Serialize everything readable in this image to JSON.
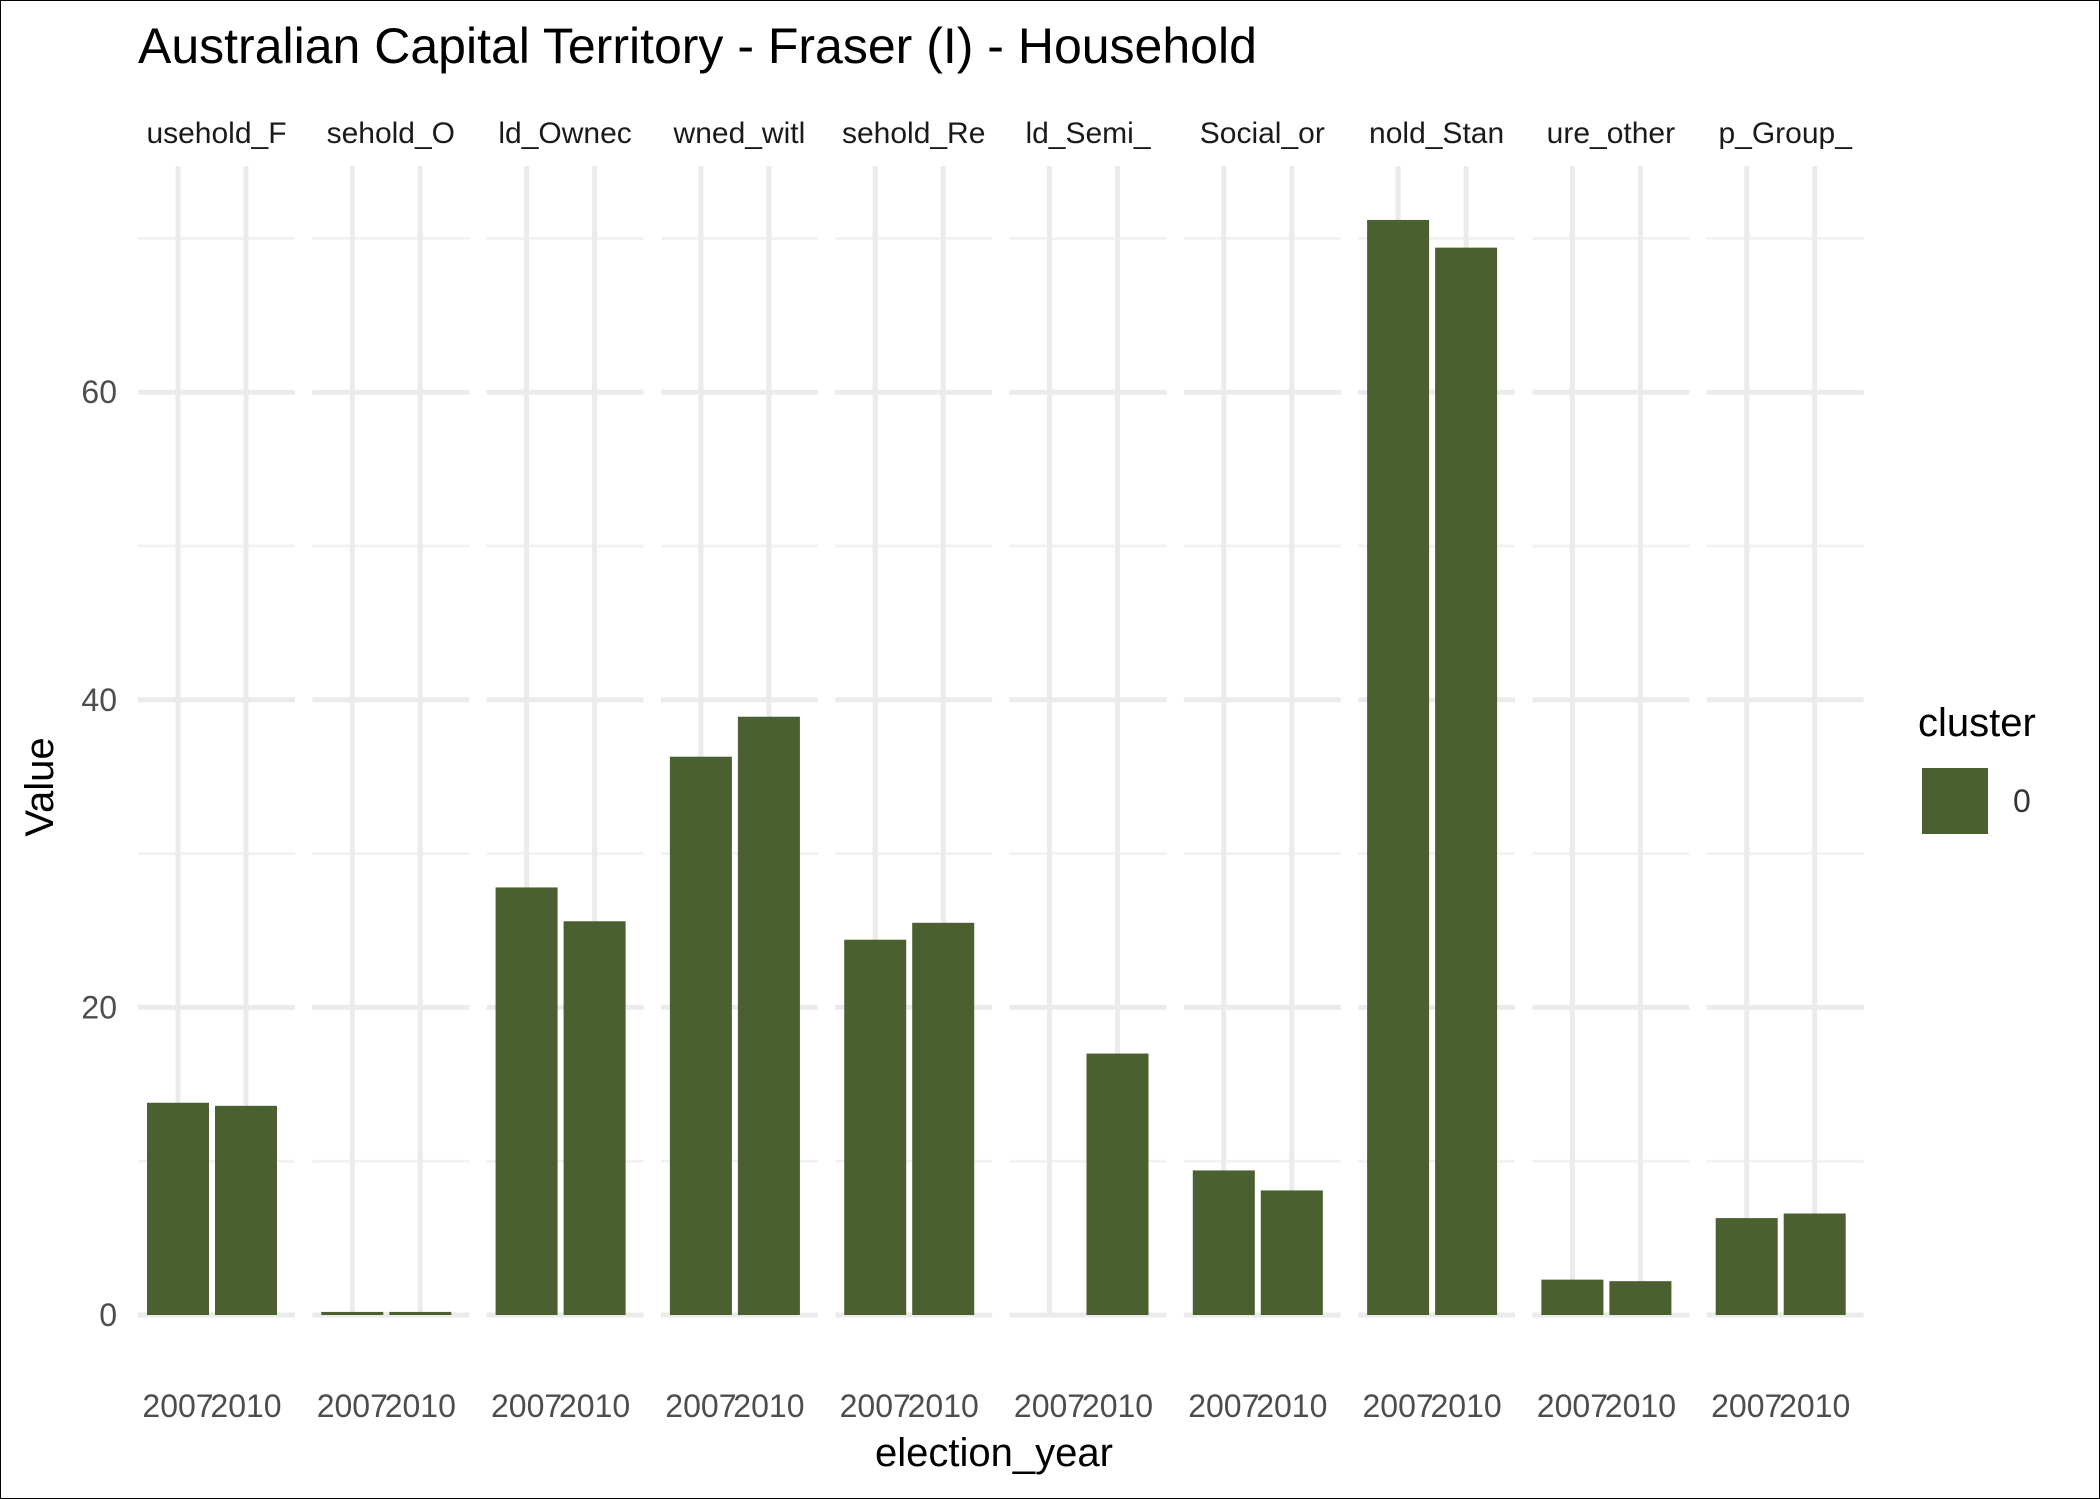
{
  "chart_data": {
    "type": "bar",
    "title": "Australian Capital Territory - Fraser (I) - Household",
    "xlabel": "election_year",
    "ylabel": "Value",
    "ylim": [
      0,
      74.5
    ],
    "yticks": [
      0,
      20,
      40,
      60
    ],
    "grid": true,
    "legend": {
      "title": "cluster",
      "position": "right",
      "entries": [
        "0"
      ]
    },
    "colors": {
      "cluster_0": "#4A6031"
    },
    "categories": [
      "2007",
      "2010"
    ],
    "facets": [
      {
        "label": "usehold_F",
        "values": [
          13.8,
          13.6
        ]
      },
      {
        "label": "sehold_O",
        "values": [
          0.2,
          0.2
        ]
      },
      {
        "label": "ld_Ownec",
        "values": [
          27.8,
          25.6
        ]
      },
      {
        "label": "wned_witl",
        "values": [
          36.3,
          38.9
        ]
      },
      {
        "label": "sehold_Re",
        "values": [
          24.4,
          25.5
        ]
      },
      {
        "label": "ld_Semi_",
        "values": [
          null,
          17.0
        ]
      },
      {
        "label": "Social_or",
        "values": [
          9.4,
          8.1
        ]
      },
      {
        "label": "nold_Stan",
        "values": [
          71.2,
          69.4
        ]
      },
      {
        "label": "ure_other",
        "values": [
          2.3,
          2.2
        ]
      },
      {
        "label": "p_Group_",
        "values": [
          6.3,
          6.6
        ]
      }
    ]
  }
}
